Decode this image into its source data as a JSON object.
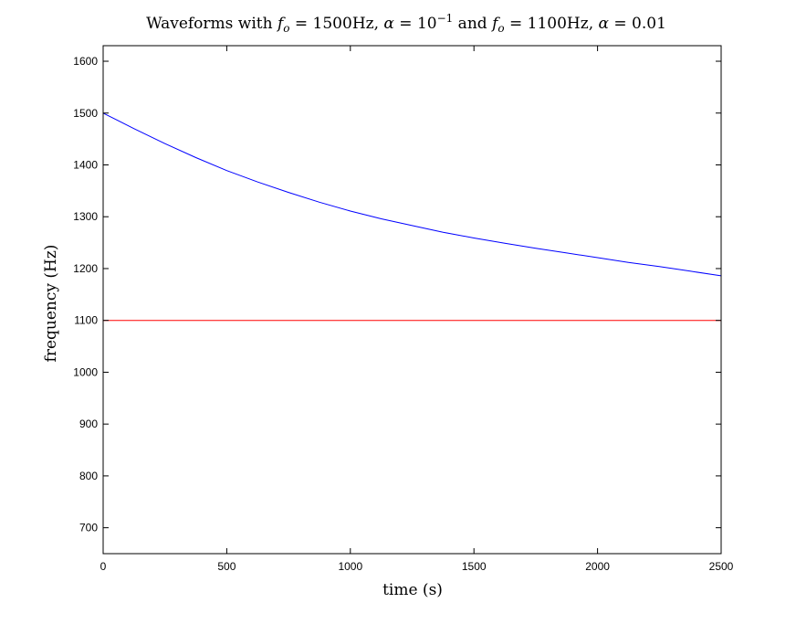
{
  "chart_data": {
    "type": "line",
    "title": {
      "prefix": "Waveforms with ",
      "f1_symbol": "f",
      "f1_sub": "o",
      "f1_value": " = 1500Hz, ",
      "a1_symbol": "α",
      "a1_eq": " = 10",
      "a1_exp": "−1",
      "mid": " and ",
      "f2_symbol": "f",
      "f2_sub": "o",
      "f2_value": " = 1100Hz, ",
      "a2_symbol": "α",
      "a2_value": " = 0.01"
    },
    "xlabel": "time (s)",
    "ylabel": "frequency (Hz)",
    "xlim": [
      0,
      2500
    ],
    "ylim": [
      650,
      1630
    ],
    "xticks": [
      0,
      500,
      1000,
      1500,
      2000,
      2500
    ],
    "yticks": [
      700,
      800,
      900,
      1000,
      1100,
      1200,
      1300,
      1400,
      1500,
      1600
    ],
    "grid": false,
    "x": [
      0,
      125,
      250,
      375,
      500,
      625,
      750,
      875,
      1000,
      1125,
      1250,
      1375,
      1500,
      1625,
      1750,
      1875,
      2000,
      2125,
      2250,
      2375,
      2500
    ],
    "series": [
      {
        "color": "#0000ff",
        "values": [
          1500,
          1470,
          1441,
          1414,
          1389,
          1367,
          1347,
          1328,
          1311,
          1296,
          1283,
          1270,
          1259,
          1249,
          1239,
          1230,
          1221,
          1212,
          1204,
          1195,
          1186
        ]
      },
      {
        "color": "#ff0000",
        "values": [
          1100,
          1100,
          1100,
          1100,
          1100,
          1100,
          1100,
          1100,
          1100,
          1100,
          1100,
          1100,
          1100,
          1100,
          1100,
          1100,
          1100,
          1100,
          1100,
          1100,
          1100
        ]
      }
    ]
  }
}
